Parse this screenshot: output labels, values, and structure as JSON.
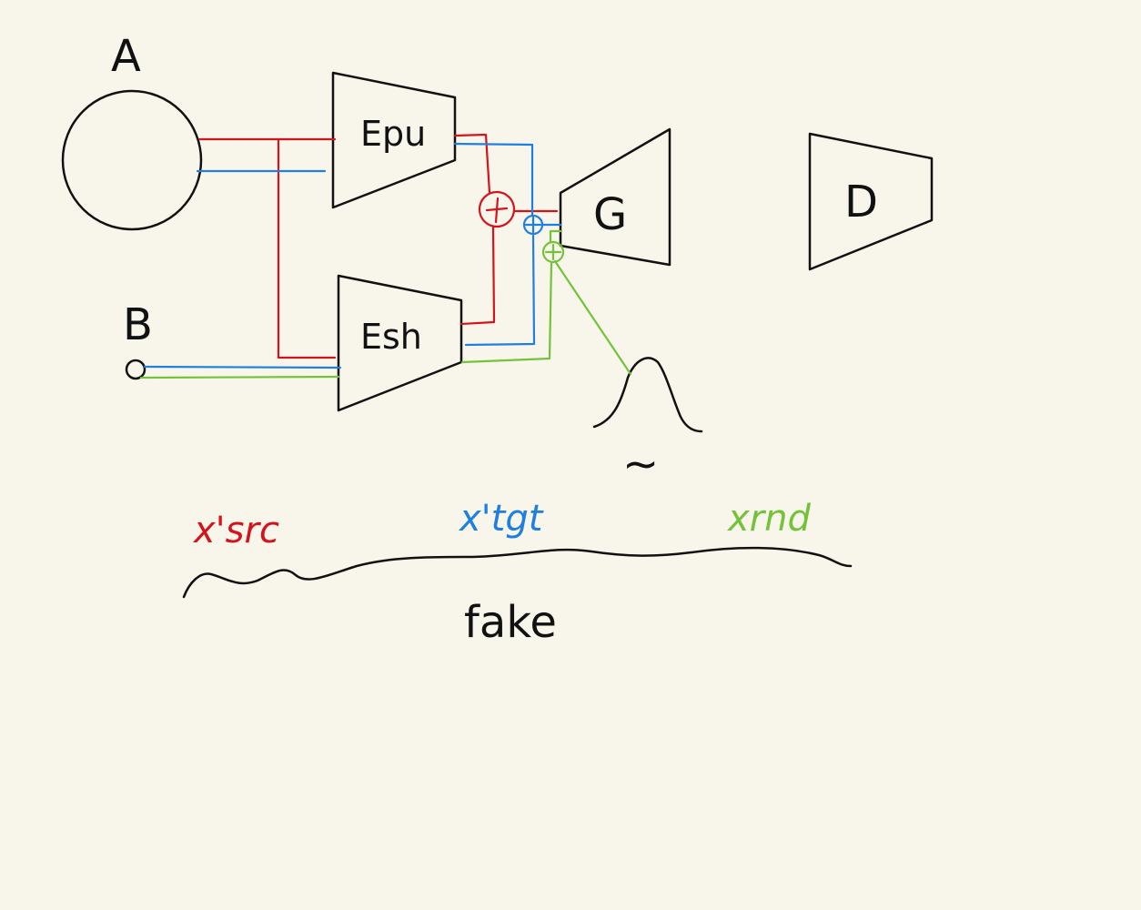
{
  "labels": {
    "A": "A",
    "B": "B",
    "Epu": "Epu",
    "Esh": "Esh",
    "G": "G",
    "D": "D",
    "tilde": "~",
    "x_src": "x'src",
    "x_tgt": "x'tgt",
    "x_rnd": "xrnd",
    "fake": "fake"
  },
  "colors": {
    "background": "#f8f6eb",
    "ink": "#111111",
    "red": "#d3141c",
    "blue": "#1f7fe0",
    "green": "#74c23a"
  }
}
